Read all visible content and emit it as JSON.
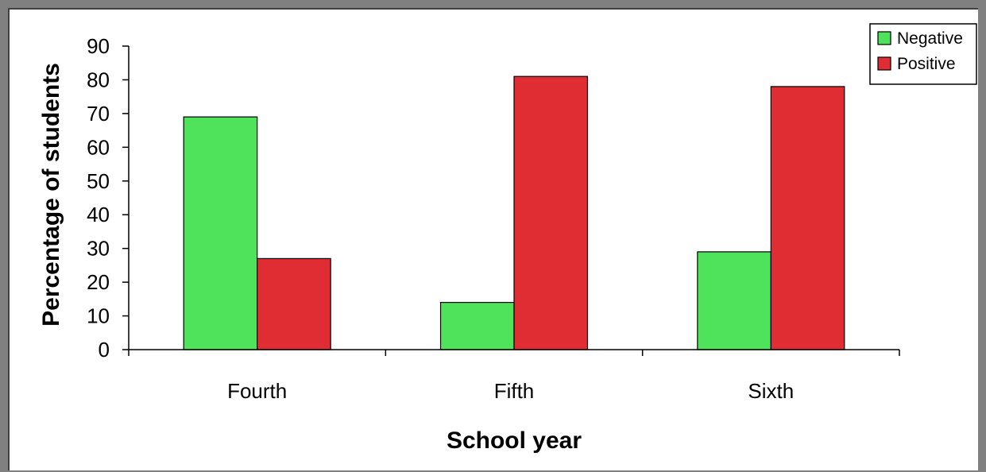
{
  "chart_data": {
    "type": "bar",
    "categories": [
      "Fourth",
      "Fifth",
      "Sixth"
    ],
    "series": [
      {
        "name": "Negative",
        "values": [
          69,
          14,
          29
        ],
        "color": "#4ee35a"
      },
      {
        "name": "Positive",
        "values": [
          27,
          81,
          78
        ],
        "color": "#e02c33"
      }
    ],
    "title": "",
    "xlabel": "School year",
    "ylabel": "Percentage of students",
    "ylim": [
      0,
      90
    ],
    "yticks": [
      "0",
      "10",
      "20",
      "30",
      "40",
      "50",
      "60",
      "70",
      "80",
      "90"
    ],
    "grid": false,
    "legend_position": "top-right"
  }
}
